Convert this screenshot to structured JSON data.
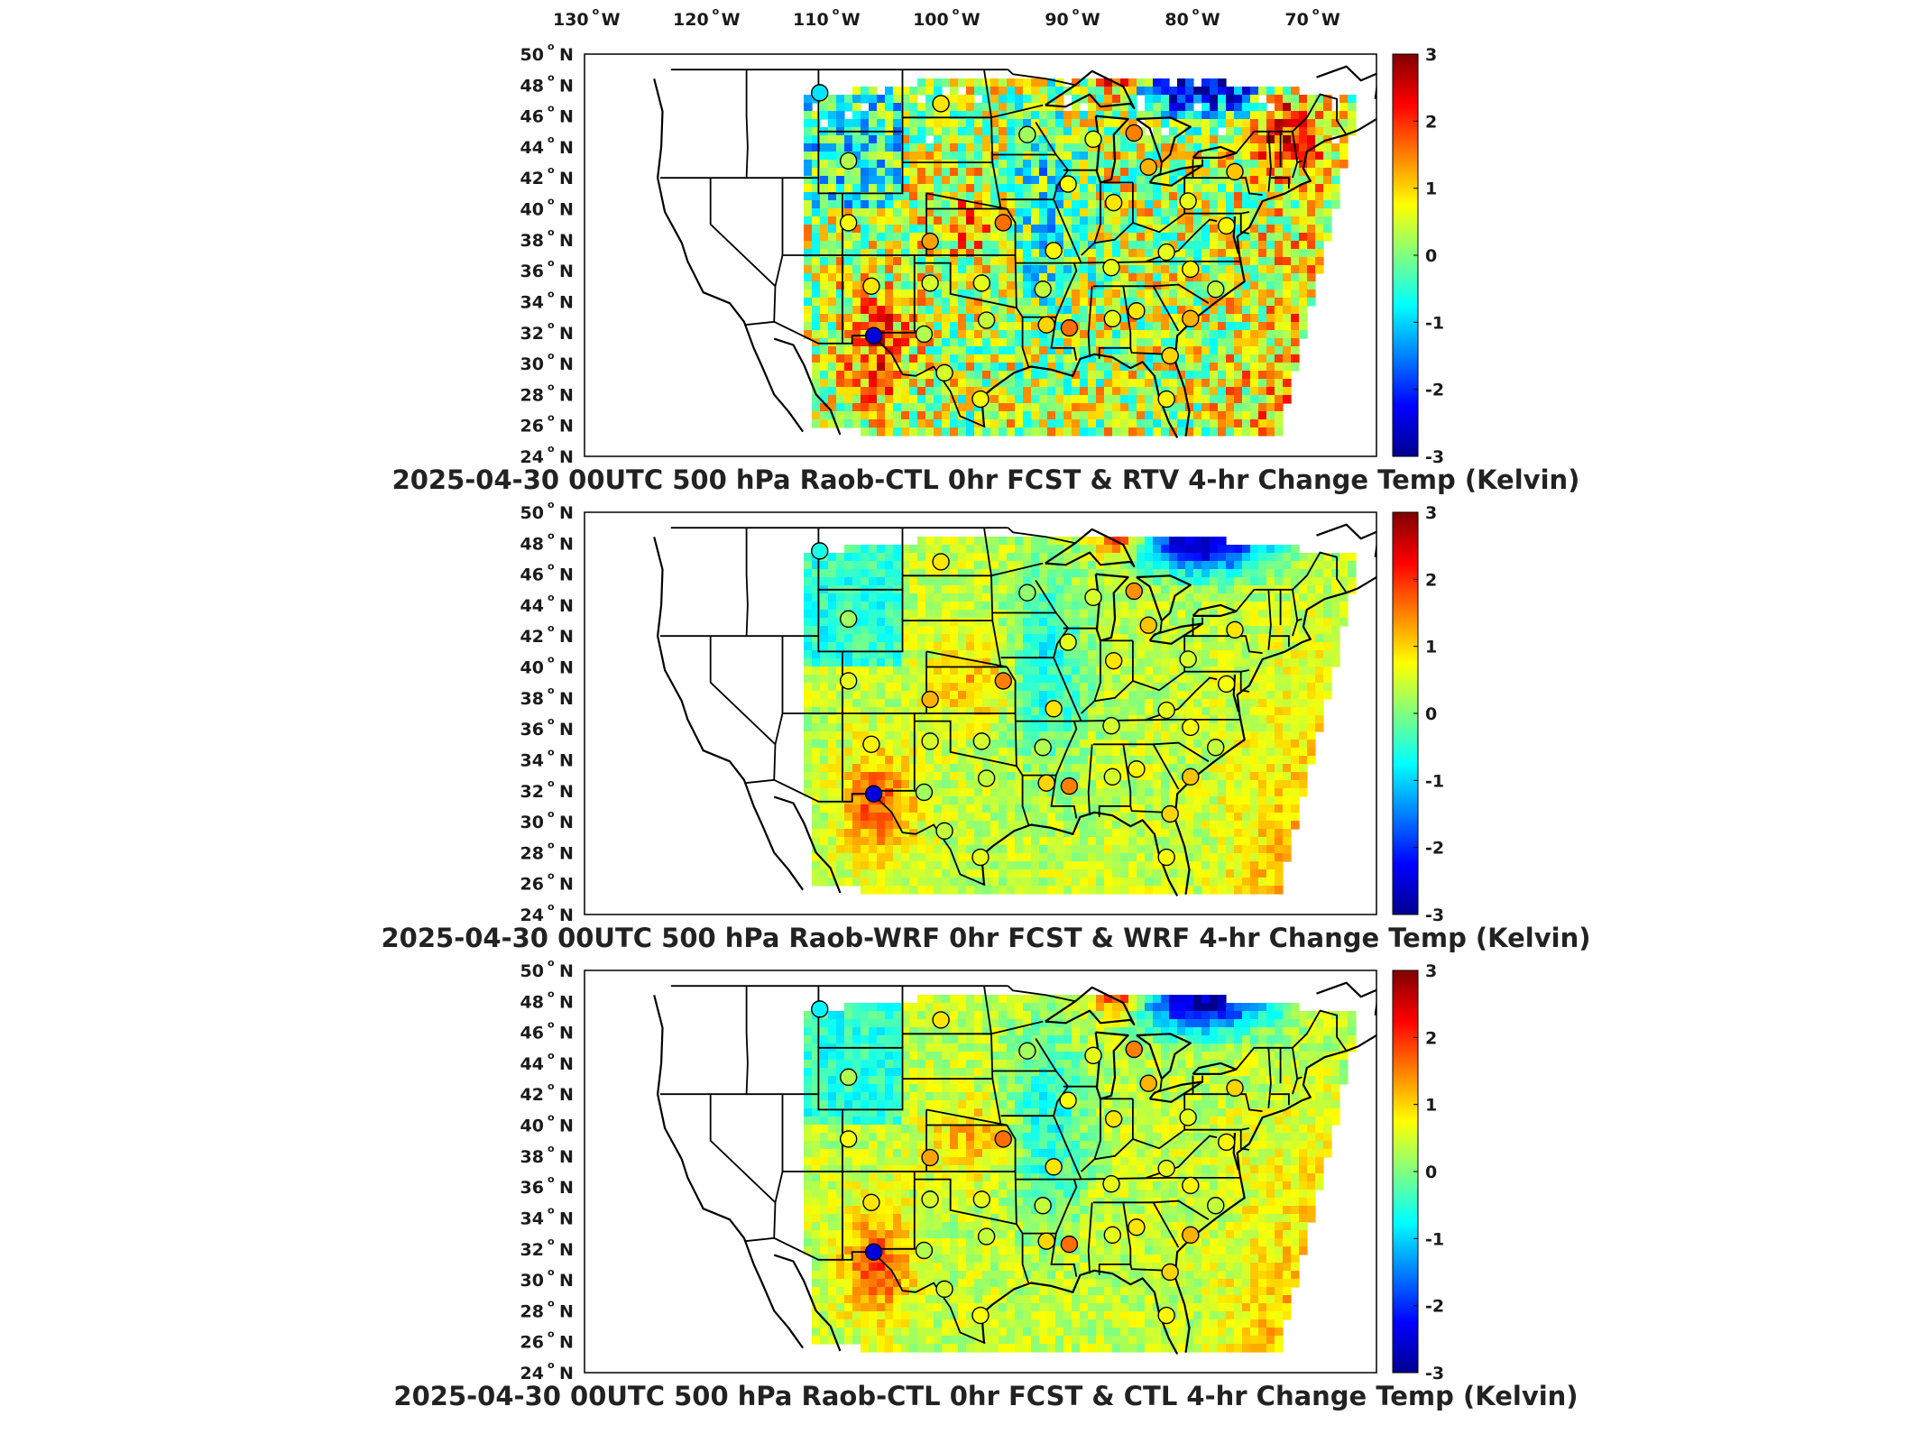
{
  "longitude_labels": [
    "130",
    "120",
    "110",
    "100",
    "90",
    "80",
    "70"
  ],
  "longitude_suffix": "W",
  "latitude_labels": [
    "50",
    "48",
    "46",
    "44",
    "42",
    "40",
    "38",
    "36",
    "34",
    "32",
    "30",
    "28",
    "26",
    "24"
  ],
  "latitude_suffix": "N",
  "degree_symbol": "o",
  "colorbar": {
    "ticks": [
      "3",
      "2",
      "1",
      "0",
      "-1",
      "-2",
      "-3"
    ],
    "min": -3,
    "max": 3,
    "colormap": [
      "#00008f",
      "#0000ff",
      "#0080ff",
      "#00ffff",
      "#80ff80",
      "#ffff00",
      "#ff8000",
      "#ff0000",
      "#800000"
    ]
  },
  "panels": [
    {
      "title": "2025-04-30 00UTC 500 hPa Raob-CTL 0hr FCST & RTV 4-hr Change Temp (Kelvin)",
      "field_style": "noisy",
      "stations": [
        {
          "lon": -110.9,
          "lat": 47.5,
          "value": -0.9
        },
        {
          "lon": -108.5,
          "lat": 43.1,
          "value": 0.3
        },
        {
          "lon": -100.8,
          "lat": 46.8,
          "value": 0.9
        },
        {
          "lon": -93.6,
          "lat": 44.8,
          "value": 0.2
        },
        {
          "lon": -88.1,
          "lat": 44.5,
          "value": 0.6
        },
        {
          "lon": -84.7,
          "lat": 44.9,
          "value": 1.5
        },
        {
          "lon": -83.5,
          "lat": 42.7,
          "value": 1.2
        },
        {
          "lon": -76.3,
          "lat": 42.4,
          "value": 1.1
        },
        {
          "lon": -90.2,
          "lat": 41.6,
          "value": 0.7
        },
        {
          "lon": -86.4,
          "lat": 40.4,
          "value": 0.9
        },
        {
          "lon": -80.2,
          "lat": 40.5,
          "value": 0.6
        },
        {
          "lon": -108.5,
          "lat": 39.1,
          "value": 0.7
        },
        {
          "lon": -101.7,
          "lat": 37.9,
          "value": 1.3
        },
        {
          "lon": -95.6,
          "lat": 39.1,
          "value": 1.6
        },
        {
          "lon": -91.4,
          "lat": 37.3,
          "value": 0.8
        },
        {
          "lon": -82.0,
          "lat": 37.2,
          "value": 0.6
        },
        {
          "lon": -77.0,
          "lat": 38.9,
          "value": 0.8
        },
        {
          "lon": -106.6,
          "lat": 35.0,
          "value": 0.9
        },
        {
          "lon": -101.7,
          "lat": 35.2,
          "value": 0.5
        },
        {
          "lon": -97.4,
          "lat": 35.2,
          "value": 0.6
        },
        {
          "lon": -92.3,
          "lat": 34.8,
          "value": 0.4
        },
        {
          "lon": -86.6,
          "lat": 36.2,
          "value": 0.6
        },
        {
          "lon": -80.0,
          "lat": 36.1,
          "value": 0.8
        },
        {
          "lon": -77.9,
          "lat": 34.8,
          "value": 0.4
        },
        {
          "lon": -106.4,
          "lat": 31.8,
          "value": -2.5
        },
        {
          "lon": -102.2,
          "lat": 31.9,
          "value": 0.3
        },
        {
          "lon": -97.0,
          "lat": 32.8,
          "value": 0.4
        },
        {
          "lon": -92.0,
          "lat": 32.5,
          "value": 1.0
        },
        {
          "lon": -90.1,
          "lat": 32.3,
          "value": 1.6
        },
        {
          "lon": -86.5,
          "lat": 32.9,
          "value": 0.6
        },
        {
          "lon": -84.5,
          "lat": 33.4,
          "value": 0.9
        },
        {
          "lon": -80.0,
          "lat": 32.9,
          "value": 1.2
        },
        {
          "lon": -81.7,
          "lat": 30.5,
          "value": 1.0
        },
        {
          "lon": -100.5,
          "lat": 29.4,
          "value": 0.5
        },
        {
          "lon": -97.5,
          "lat": 27.7,
          "value": 0.7
        },
        {
          "lon": -82.0,
          "lat": 27.7,
          "value": 0.8
        }
      ]
    },
    {
      "title": "2025-04-30 00UTC 500 hPa Raob-WRF 0hr FCST & WRF 4-hr Change Temp (Kelvin)",
      "field_style": "smooth",
      "stations": [
        {
          "lon": -110.9,
          "lat": 47.5,
          "value": -0.6
        },
        {
          "lon": -108.5,
          "lat": 43.1,
          "value": 0.2
        },
        {
          "lon": -100.8,
          "lat": 46.8,
          "value": 0.9
        },
        {
          "lon": -93.6,
          "lat": 44.8,
          "value": 0.1
        },
        {
          "lon": -88.1,
          "lat": 44.5,
          "value": 0.5
        },
        {
          "lon": -84.7,
          "lat": 44.9,
          "value": 1.4
        },
        {
          "lon": -83.5,
          "lat": 42.7,
          "value": 1.1
        },
        {
          "lon": -76.3,
          "lat": 42.4,
          "value": 0.9
        },
        {
          "lon": -90.2,
          "lat": 41.6,
          "value": 0.6
        },
        {
          "lon": -86.4,
          "lat": 40.4,
          "value": 0.9
        },
        {
          "lon": -80.2,
          "lat": 40.5,
          "value": 0.5
        },
        {
          "lon": -108.5,
          "lat": 39.1,
          "value": 0.6
        },
        {
          "lon": -101.7,
          "lat": 37.9,
          "value": 1.2
        },
        {
          "lon": -95.6,
          "lat": 39.1,
          "value": 1.5
        },
        {
          "lon": -91.4,
          "lat": 37.3,
          "value": 0.9
        },
        {
          "lon": -82.0,
          "lat": 37.2,
          "value": 0.6
        },
        {
          "lon": -77.0,
          "lat": 38.9,
          "value": 0.7
        },
        {
          "lon": -106.6,
          "lat": 35.0,
          "value": 0.8
        },
        {
          "lon": -101.7,
          "lat": 35.2,
          "value": 0.5
        },
        {
          "lon": -97.4,
          "lat": 35.2,
          "value": 0.5
        },
        {
          "lon": -92.3,
          "lat": 34.8,
          "value": 0.3
        },
        {
          "lon": -86.6,
          "lat": 36.2,
          "value": 0.5
        },
        {
          "lon": -80.0,
          "lat": 36.1,
          "value": 0.7
        },
        {
          "lon": -77.9,
          "lat": 34.8,
          "value": 0.4
        },
        {
          "lon": -106.4,
          "lat": 31.8,
          "value": -2.5
        },
        {
          "lon": -102.2,
          "lat": 31.9,
          "value": 0.2
        },
        {
          "lon": -97.0,
          "lat": 32.8,
          "value": 0.4
        },
        {
          "lon": -92.0,
          "lat": 32.5,
          "value": 1.0
        },
        {
          "lon": -90.1,
          "lat": 32.3,
          "value": 1.5
        },
        {
          "lon": -86.5,
          "lat": 32.9,
          "value": 0.5
        },
        {
          "lon": -84.5,
          "lat": 33.4,
          "value": 0.8
        },
        {
          "lon": -80.0,
          "lat": 32.9,
          "value": 1.1
        },
        {
          "lon": -81.7,
          "lat": 30.5,
          "value": 1.0
        },
        {
          "lon": -100.5,
          "lat": 29.4,
          "value": 0.4
        },
        {
          "lon": -97.5,
          "lat": 27.7,
          "value": 0.6
        },
        {
          "lon": -82.0,
          "lat": 27.7,
          "value": 0.7
        }
      ]
    },
    {
      "title": "2025-04-30 00UTC 500 hPa Raob-CTL 0hr FCST & CTL 4-hr Change Temp (Kelvin)",
      "field_style": "smooth",
      "stations": [
        {
          "lon": -110.9,
          "lat": 47.5,
          "value": -0.8
        },
        {
          "lon": -108.5,
          "lat": 43.1,
          "value": 0.3
        },
        {
          "lon": -100.8,
          "lat": 46.8,
          "value": 0.9
        },
        {
          "lon": -93.6,
          "lat": 44.8,
          "value": 0.2
        },
        {
          "lon": -88.1,
          "lat": 44.5,
          "value": 0.6
        },
        {
          "lon": -84.7,
          "lat": 44.9,
          "value": 1.5
        },
        {
          "lon": -83.5,
          "lat": 42.7,
          "value": 1.2
        },
        {
          "lon": -76.3,
          "lat": 42.4,
          "value": 1.0
        },
        {
          "lon": -90.2,
          "lat": 41.6,
          "value": 0.7
        },
        {
          "lon": -86.4,
          "lat": 40.4,
          "value": 0.9
        },
        {
          "lon": -80.2,
          "lat": 40.5,
          "value": 0.6
        },
        {
          "lon": -108.5,
          "lat": 39.1,
          "value": 0.7
        },
        {
          "lon": -101.7,
          "lat": 37.9,
          "value": 1.3
        },
        {
          "lon": -95.6,
          "lat": 39.1,
          "value": 1.6
        },
        {
          "lon": -91.4,
          "lat": 37.3,
          "value": 0.9
        },
        {
          "lon": -82.0,
          "lat": 37.2,
          "value": 0.6
        },
        {
          "lon": -77.0,
          "lat": 38.9,
          "value": 0.8
        },
        {
          "lon": -106.6,
          "lat": 35.0,
          "value": 0.9
        },
        {
          "lon": -101.7,
          "lat": 35.2,
          "value": 0.5
        },
        {
          "lon": -97.4,
          "lat": 35.2,
          "value": 0.6
        },
        {
          "lon": -92.3,
          "lat": 34.8,
          "value": 0.4
        },
        {
          "lon": -86.6,
          "lat": 36.2,
          "value": 0.6
        },
        {
          "lon": -80.0,
          "lat": 36.1,
          "value": 0.8
        },
        {
          "lon": -77.9,
          "lat": 34.8,
          "value": 0.4
        },
        {
          "lon": -106.4,
          "lat": 31.8,
          "value": -2.5
        },
        {
          "lon": -102.2,
          "lat": 31.9,
          "value": 0.3
        },
        {
          "lon": -97.0,
          "lat": 32.8,
          "value": 0.4
        },
        {
          "lon": -92.0,
          "lat": 32.5,
          "value": 1.0
        },
        {
          "lon": -90.1,
          "lat": 32.3,
          "value": 1.6
        },
        {
          "lon": -86.5,
          "lat": 32.9,
          "value": 0.6
        },
        {
          "lon": -84.5,
          "lat": 33.4,
          "value": 0.9
        },
        {
          "lon": -80.0,
          "lat": 32.9,
          "value": 1.2
        },
        {
          "lon": -81.7,
          "lat": 30.5,
          "value": 1.0
        },
        {
          "lon": -100.5,
          "lat": 29.4,
          "value": 0.5
        },
        {
          "lon": -97.5,
          "lat": 27.7,
          "value": 0.7
        },
        {
          "lon": -82.0,
          "lat": 27.7,
          "value": 0.8
        }
      ]
    }
  ]
}
